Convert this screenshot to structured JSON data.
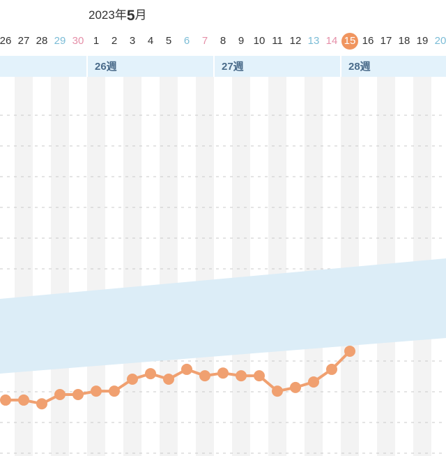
{
  "header": {
    "year": "2023年",
    "month": "5",
    "month_suffix": "月"
  },
  "weeks": [
    "26週",
    "27週",
    "28週"
  ],
  "chart_data": {
    "type": "line",
    "categories": [
      "26",
      "27",
      "28",
      "29",
      "30",
      "1",
      "2",
      "3",
      "4",
      "5",
      "6",
      "7",
      "8",
      "9",
      "10",
      "11",
      "12",
      "13",
      "14",
      "15",
      "16",
      "17",
      "18",
      "19",
      "20"
    ],
    "category_colors": [
      "#333333",
      "#333333",
      "#333333",
      "#7bbcd6",
      "#e58fa8",
      "#333333",
      "#333333",
      "#333333",
      "#333333",
      "#333333",
      "#7bbcd6",
      "#e58fa8",
      "#333333",
      "#333333",
      "#333333",
      "#333333",
      "#333333",
      "#7bbcd6",
      "#e58fa8",
      "#ffffff",
      "#333333",
      "#333333",
      "#333333",
      "#333333",
      "#7bbcd6"
    ],
    "category_backgrounds": [
      null,
      null,
      null,
      null,
      null,
      null,
      null,
      null,
      null,
      null,
      null,
      null,
      null,
      null,
      null,
      null,
      null,
      null,
      null,
      "#f0955f",
      null,
      null,
      null,
      null,
      null
    ],
    "series": [
      {
        "color": "#f0a070",
        "values": [
          0.73,
          0.73,
          0.61,
          0.91,
          0.91,
          1.02,
          1.02,
          1.41,
          1.59,
          1.41,
          1.73,
          1.52,
          1.61,
          1.52,
          1.52,
          1.02,
          1.14,
          1.32,
          1.73,
          2.32,
          null,
          null,
          null,
          null,
          null
        ]
      }
    ],
    "ylim": [
      -1.09,
      11.25
    ]
  }
}
